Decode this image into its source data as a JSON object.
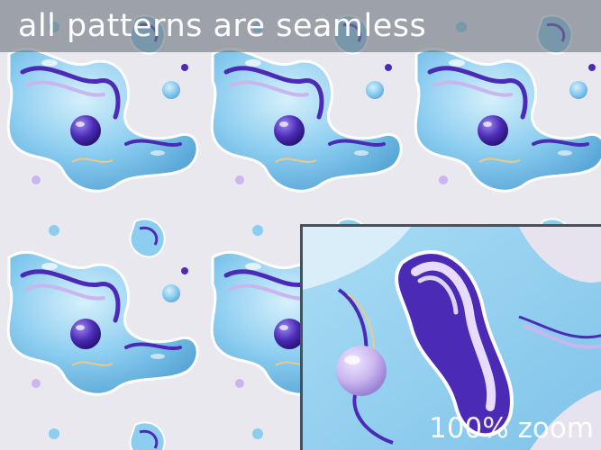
{
  "banner": {
    "title": "all patterns are seamless"
  },
  "zoom_panel": {
    "label": "100% zoom"
  },
  "colors": {
    "background": "#eae8ef",
    "light_blue": "#8ccdf0",
    "pale_blue": "#bfe4f7",
    "purple": "#4b2bb5",
    "lavender": "#c9b6ee",
    "banner_overlay": "#6e7680"
  }
}
